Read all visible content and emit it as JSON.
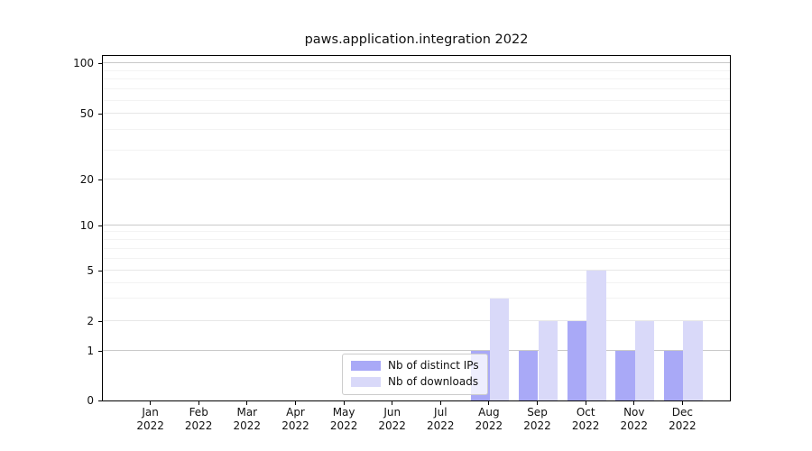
{
  "chart_data": {
    "type": "bar",
    "title": "paws.application.integration 2022",
    "categories": [
      "Jan",
      "Feb",
      "Mar",
      "Apr",
      "May",
      "Jun",
      "Jul",
      "Aug",
      "Sep",
      "Oct",
      "Nov",
      "Dec"
    ],
    "x_tick_year": "2022",
    "series": [
      {
        "name": "Nb of distinct IPs",
        "color": "#a9a9f7",
        "values": [
          0,
          0,
          0,
          0,
          0,
          0,
          0,
          1,
          1,
          2,
          1,
          1
        ]
      },
      {
        "name": "Nb of downloads",
        "color": "#d9d9f9",
        "values": [
          0,
          0,
          0,
          0,
          0,
          0,
          0,
          3,
          2,
          5,
          2,
          2
        ]
      }
    ],
    "yscale": "symlog",
    "ylim": [
      0,
      130
    ],
    "y_ticks": [
      0,
      1,
      2,
      5,
      10,
      20,
      50,
      100
    ],
    "major_gridlines": [
      1,
      10,
      100
    ],
    "labeled_minor_gridlines": [
      2,
      5,
      20,
      50
    ],
    "minor_gridlines": [
      3,
      4,
      6,
      7,
      8,
      9,
      30,
      40,
      60,
      70,
      80,
      90
    ],
    "grid": true,
    "bar_width_fraction": 0.4,
    "xlim_slots": 13,
    "legend": {
      "position": "lower center",
      "entries": [
        "Nb of distinct IPs",
        "Nb of downloads"
      ]
    }
  }
}
